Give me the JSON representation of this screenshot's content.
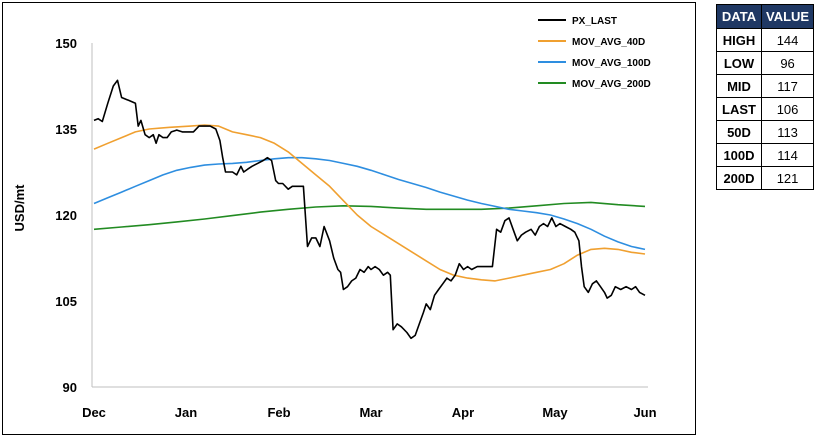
{
  "chart_data": {
    "type": "line",
    "ylabel": "USD/mt",
    "ylim": [
      90,
      150
    ],
    "yticks": [
      90,
      105,
      120,
      135,
      150
    ],
    "xticks": [
      "Dec",
      "Jan",
      "Feb",
      "Mar",
      "Apr",
      "May",
      "Jun"
    ],
    "x_month_index": {
      "Dec": 0,
      "Jan": 1,
      "Feb": 2,
      "Mar": 3,
      "Apr": 4,
      "May": 5,
      "Jun": 6
    },
    "legend_position": "top-right",
    "series": [
      {
        "name": "PX_LAST",
        "color": "#000000",
        "points": [
          [
            0.0,
            136.5
          ],
          [
            0.03,
            136.8
          ],
          [
            0.06,
            136.3
          ],
          [
            0.1,
            139.5
          ],
          [
            0.14,
            142.5
          ],
          [
            0.17,
            143.5
          ],
          [
            0.2,
            140.5
          ],
          [
            0.25,
            140.0
          ],
          [
            0.3,
            139.5
          ],
          [
            0.32,
            135.5
          ],
          [
            0.34,
            136.5
          ],
          [
            0.37,
            134.0
          ],
          [
            0.4,
            133.5
          ],
          [
            0.43,
            134.0
          ],
          [
            0.45,
            132.5
          ],
          [
            0.47,
            134.0
          ],
          [
            0.5,
            133.5
          ],
          [
            0.53,
            133.5
          ],
          [
            0.56,
            134.5
          ],
          [
            0.6,
            134.8
          ],
          [
            0.64,
            134.5
          ],
          [
            0.68,
            134.5
          ],
          [
            0.72,
            134.5
          ],
          [
            0.76,
            135.5
          ],
          [
            0.8,
            135.5
          ],
          [
            0.84,
            135.5
          ],
          [
            0.88,
            135.0
          ],
          [
            0.91,
            133.0
          ],
          [
            0.93,
            130.0
          ],
          [
            0.95,
            127.5
          ],
          [
            0.98,
            127.5
          ],
          [
            1.0,
            127.5
          ],
          [
            1.03,
            127.0
          ],
          [
            1.06,
            128.5
          ],
          [
            1.08,
            127.5
          ],
          [
            1.11,
            128.0
          ],
          [
            1.14,
            128.5
          ],
          [
            1.18,
            129.0
          ],
          [
            1.22,
            129.5
          ],
          [
            1.25,
            130.0
          ],
          [
            1.28,
            129.5
          ],
          [
            1.31,
            126.0
          ],
          [
            1.33,
            125.5
          ],
          [
            1.36,
            125.5
          ],
          [
            1.4,
            124.5
          ],
          [
            1.43,
            125.0
          ],
          [
            1.46,
            125.0
          ],
          [
            1.49,
            125.0
          ],
          [
            1.51,
            125.0
          ],
          [
            1.54,
            114.5
          ],
          [
            1.57,
            116.0
          ],
          [
            1.6,
            116.0
          ],
          [
            1.63,
            114.5
          ],
          [
            1.66,
            118.0
          ],
          [
            1.7,
            115.5
          ],
          [
            1.73,
            112.5
          ],
          [
            1.76,
            110.5
          ],
          [
            1.78,
            110.0
          ],
          [
            1.8,
            107.0
          ],
          [
            1.83,
            107.5
          ],
          [
            1.86,
            108.5
          ],
          [
            1.89,
            109.0
          ],
          [
            1.92,
            110.5
          ],
          [
            1.95,
            110.0
          ],
          [
            1.98,
            111.0
          ],
          [
            2.0,
            110.5
          ],
          [
            2.03,
            111.0
          ],
          [
            2.06,
            110.5
          ],
          [
            2.09,
            109.5
          ],
          [
            2.12,
            110.0
          ],
          [
            2.14,
            109.5
          ],
          [
            2.16,
            100.0
          ],
          [
            2.19,
            101.0
          ],
          [
            2.22,
            100.5
          ],
          [
            2.26,
            99.5
          ],
          [
            2.29,
            98.5
          ],
          [
            2.32,
            99.0
          ],
          [
            2.35,
            101.0
          ],
          [
            2.38,
            103.0
          ],
          [
            2.4,
            104.5
          ],
          [
            2.43,
            103.5
          ],
          [
            2.46,
            106.0
          ],
          [
            2.49,
            107.0
          ],
          [
            2.52,
            108.0
          ],
          [
            2.55,
            109.0
          ],
          [
            2.58,
            108.5
          ],
          [
            2.61,
            109.5
          ],
          [
            2.64,
            111.5
          ],
          [
            2.67,
            110.5
          ],
          [
            2.7,
            111.0
          ],
          [
            2.73,
            110.5
          ],
          [
            2.77,
            111.0
          ],
          [
            2.81,
            111.0
          ],
          [
            2.85,
            111.0
          ],
          [
            2.88,
            111.0
          ],
          [
            2.91,
            117.5
          ],
          [
            2.94,
            117.0
          ],
          [
            2.97,
            119.0
          ],
          [
            3.0,
            119.5
          ],
          [
            3.03,
            117.5
          ],
          [
            3.06,
            115.5
          ],
          [
            3.09,
            116.5
          ],
          [
            3.12,
            117.0
          ],
          [
            3.16,
            117.5
          ],
          [
            3.19,
            116.5
          ],
          [
            3.22,
            118.0
          ],
          [
            3.25,
            118.5
          ],
          [
            3.28,
            118.0
          ],
          [
            3.31,
            119.5
          ],
          [
            3.34,
            118.0
          ],
          [
            3.37,
            118.5
          ],
          [
            3.41,
            118.0
          ],
          [
            3.45,
            117.5
          ],
          [
            3.48,
            117.0
          ],
          [
            3.51,
            115.5
          ],
          [
            3.53,
            111.0
          ],
          [
            3.55,
            107.5
          ],
          [
            3.58,
            106.5
          ],
          [
            3.61,
            108.0
          ],
          [
            3.64,
            108.5
          ],
          [
            3.67,
            107.5
          ],
          [
            3.7,
            106.5
          ],
          [
            3.72,
            105.5
          ],
          [
            3.75,
            106.0
          ],
          [
            3.78,
            107.5
          ],
          [
            3.82,
            107.0
          ],
          [
            3.86,
            107.5
          ],
          [
            3.9,
            107.0
          ],
          [
            3.93,
            107.5
          ],
          [
            3.96,
            106.5
          ],
          [
            4.0,
            106.0
          ]
        ]
      },
      {
        "name": "MOV_AVG_40D",
        "color": "#f0a030",
        "points": [
          [
            0.0,
            131.5
          ],
          [
            0.1,
            132.5
          ],
          [
            0.2,
            133.5
          ],
          [
            0.3,
            134.5
          ],
          [
            0.4,
            135.0
          ],
          [
            0.55,
            135.3
          ],
          [
            0.7,
            135.5
          ],
          [
            0.8,
            135.7
          ],
          [
            0.9,
            135.5
          ],
          [
            1.0,
            134.5
          ],
          [
            1.1,
            134.0
          ],
          [
            1.2,
            133.5
          ],
          [
            1.3,
            132.5
          ],
          [
            1.4,
            131.0
          ],
          [
            1.5,
            129.0
          ],
          [
            1.6,
            127.0
          ],
          [
            1.7,
            125.0
          ],
          [
            1.8,
            122.5
          ],
          [
            1.9,
            120.0
          ],
          [
            2.0,
            118.0
          ],
          [
            2.1,
            116.5
          ],
          [
            2.2,
            115.0
          ],
          [
            2.3,
            113.5
          ],
          [
            2.4,
            112.0
          ],
          [
            2.5,
            110.5
          ],
          [
            2.6,
            109.5
          ],
          [
            2.7,
            109.0
          ],
          [
            2.8,
            108.7
          ],
          [
            2.9,
            108.5
          ],
          [
            3.0,
            109.0
          ],
          [
            3.1,
            109.5
          ],
          [
            3.2,
            110.0
          ],
          [
            3.3,
            110.5
          ],
          [
            3.4,
            111.5
          ],
          [
            3.5,
            113.0
          ],
          [
            3.6,
            114.0
          ],
          [
            3.7,
            114.2
          ],
          [
            3.8,
            114.0
          ],
          [
            3.9,
            113.5
          ],
          [
            4.0,
            113.2
          ]
        ]
      },
      {
        "name": "MOV_AVG_100D",
        "color": "#2e8ee0",
        "points": [
          [
            0.0,
            122.0
          ],
          [
            0.1,
            123.0
          ],
          [
            0.2,
            124.0
          ],
          [
            0.3,
            125.0
          ],
          [
            0.4,
            126.0
          ],
          [
            0.5,
            127.0
          ],
          [
            0.6,
            127.8
          ],
          [
            0.7,
            128.3
          ],
          [
            0.8,
            128.7
          ],
          [
            0.9,
            128.9
          ],
          [
            1.0,
            129.0
          ],
          [
            1.1,
            129.2
          ],
          [
            1.2,
            129.5
          ],
          [
            1.3,
            129.8
          ],
          [
            1.4,
            130.0
          ],
          [
            1.5,
            130.0
          ],
          [
            1.6,
            129.8
          ],
          [
            1.7,
            129.5
          ],
          [
            1.8,
            129.0
          ],
          [
            1.9,
            128.5
          ],
          [
            2.0,
            127.8
          ],
          [
            2.1,
            127.0
          ],
          [
            2.2,
            126.2
          ],
          [
            2.3,
            125.5
          ],
          [
            2.4,
            124.8
          ],
          [
            2.5,
            124.0
          ],
          [
            2.6,
            123.3
          ],
          [
            2.7,
            122.6
          ],
          [
            2.8,
            122.0
          ],
          [
            2.9,
            121.5
          ],
          [
            3.0,
            121.0
          ],
          [
            3.1,
            120.7
          ],
          [
            3.2,
            120.4
          ],
          [
            3.3,
            120.0
          ],
          [
            3.4,
            119.3
          ],
          [
            3.5,
            118.5
          ],
          [
            3.6,
            117.5
          ],
          [
            3.7,
            116.3
          ],
          [
            3.8,
            115.3
          ],
          [
            3.9,
            114.5
          ],
          [
            4.0,
            114.0
          ]
        ]
      },
      {
        "name": "MOV_AVG_200D",
        "color": "#228b22",
        "points": [
          [
            0.0,
            117.5
          ],
          [
            0.2,
            117.9
          ],
          [
            0.4,
            118.3
          ],
          [
            0.6,
            118.8
          ],
          [
            0.8,
            119.3
          ],
          [
            1.0,
            119.9
          ],
          [
            1.2,
            120.5
          ],
          [
            1.4,
            121.0
          ],
          [
            1.6,
            121.4
          ],
          [
            1.8,
            121.6
          ],
          [
            2.0,
            121.5
          ],
          [
            2.2,
            121.2
          ],
          [
            2.4,
            121.0
          ],
          [
            2.6,
            121.0
          ],
          [
            2.8,
            121.0
          ],
          [
            3.0,
            121.2
          ],
          [
            3.2,
            121.6
          ],
          [
            3.4,
            122.0
          ],
          [
            3.6,
            122.2
          ],
          [
            3.8,
            121.8
          ],
          [
            4.0,
            121.5
          ]
        ]
      }
    ]
  },
  "table": {
    "headers": [
      "DATA",
      "VALUE"
    ],
    "rows": [
      {
        "label": "HIGH",
        "value": "144"
      },
      {
        "label": "LOW",
        "value": "96"
      },
      {
        "label": "MID",
        "value": "117"
      },
      {
        "label": "LAST",
        "value": "106"
      },
      {
        "label": "50D",
        "value": "113"
      },
      {
        "label": "100D",
        "value": "114"
      },
      {
        "label": "200D",
        "value": "121"
      }
    ],
    "header_color": "#1f3864"
  }
}
